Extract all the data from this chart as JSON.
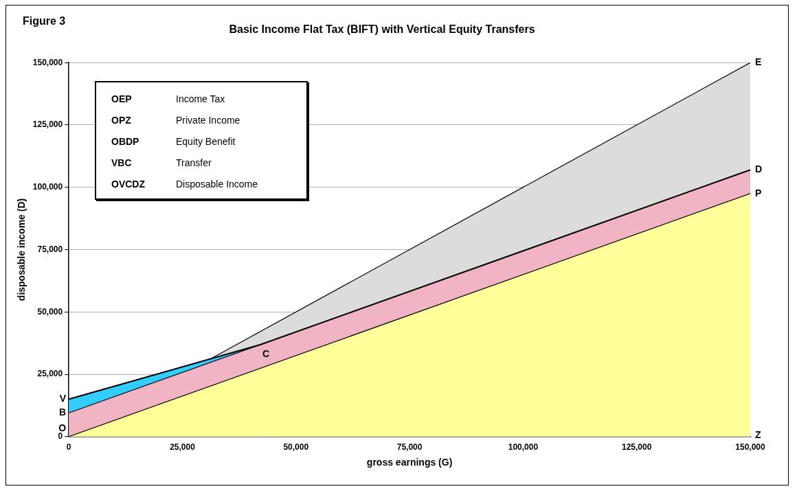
{
  "chart_data": {
    "type": "area",
    "title": "Basic Income Flat Tax (BIFT) with Vertical Equity Transfers",
    "xlabel": "gross earnings (G)",
    "ylabel": "disposable income (D)",
    "xlim": [
      0,
      150000
    ],
    "xticks": [
      {
        "value": 0,
        "label": "0"
      },
      {
        "value": 25000,
        "label": "25,000"
      },
      {
        "value": 50000,
        "label": "50,000"
      },
      {
        "value": 75000,
        "label": "75,000"
      },
      {
        "value": 100000,
        "label": "100,000"
      },
      {
        "value": 125000,
        "label": "125,000"
      },
      {
        "value": 150000,
        "label": "150,000"
      }
    ],
    "ylim": [
      0,
      150000
    ],
    "yticks": [
      {
        "value": 0,
        "label": "0"
      },
      {
        "value": 25000,
        "label": "25,000"
      },
      {
        "value": 50000,
        "label": "50,000"
      },
      {
        "value": 75000,
        "label": "75,000"
      },
      {
        "value": 100000,
        "label": "100,000"
      },
      {
        "value": 125000,
        "label": "125,000"
      },
      {
        "value": 150000,
        "label": "150,000"
      }
    ],
    "grid": "y",
    "series": [
      {
        "color": "#dcdcdc",
        "x": [
          0,
          150000
        ],
        "values": [
          0,
          150000
        ]
      },
      {
        "color": "#33ccff",
        "x": [
          0,
          42000
        ],
        "values": [
          15000,
          36800
        ]
      },
      {
        "color": "#f0b4c4",
        "x": [
          0,
          150000
        ],
        "values": [
          9500,
          107000
        ]
      },
      {
        "color": "#ffff99",
        "x": [
          0,
          150000
        ],
        "values": [
          0,
          97500
        ]
      },
      {
        "type": "line",
        "color": "#000000",
        "x": [
          0,
          42000,
          150000
        ],
        "values": [
          15000,
          36800,
          107000
        ]
      }
    ],
    "annotations": [
      "Figure 3",
      "OEP",
      "Income Tax",
      "OPZ",
      "Private Income",
      "OBDP",
      "Equity Benefit",
      "VBC",
      "Transfer",
      "OVCDZ",
      "Disposable Income",
      {
        "text": "V",
        "x": 0,
        "y": 15000
      },
      {
        "text": "B",
        "x": 0,
        "y": 9500
      },
      {
        "text": "O",
        "x": 0,
        "y": 0
      },
      {
        "text": "C",
        "x": 42000,
        "y": 36800
      },
      {
        "text": "E",
        "x": 150000,
        "y": 150000
      },
      {
        "text": "D",
        "x": 150000,
        "y": 107000
      },
      {
        "text": "P",
        "x": 150000,
        "y": 97500
      },
      {
        "text": "Z",
        "x": 150000,
        "y": 0
      }
    ]
  }
}
